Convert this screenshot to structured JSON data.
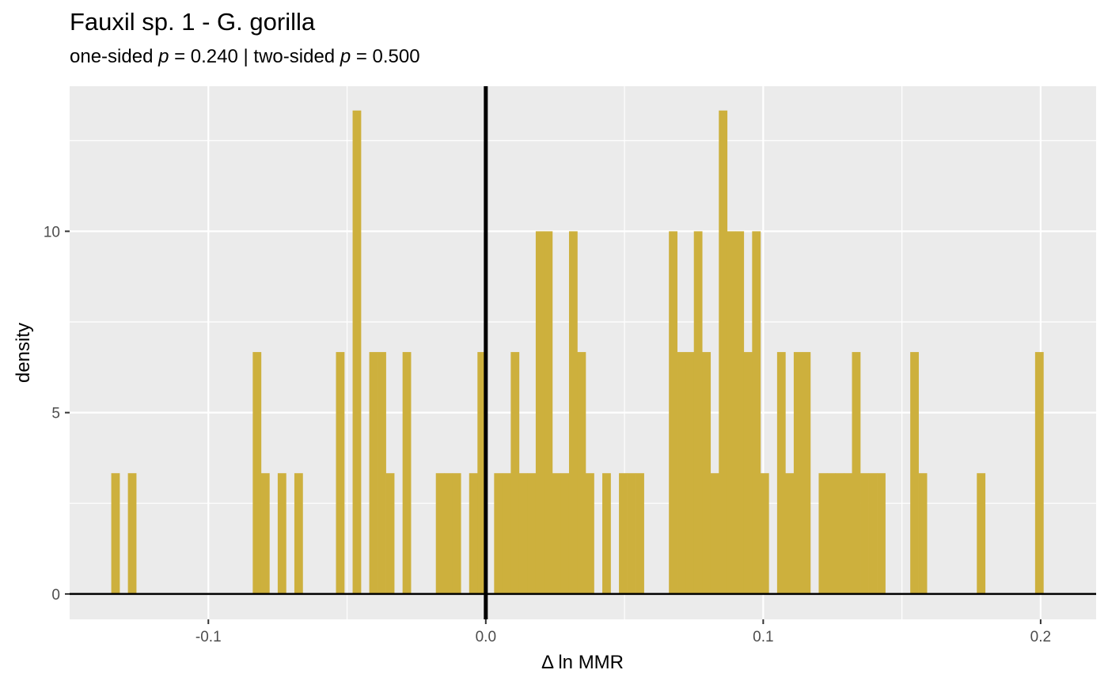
{
  "chart_data": {
    "type": "bar",
    "title": "Fauxil sp. 1 - G. gorilla",
    "subtitle": {
      "one_sided_label": "one-sided ",
      "p_symbol": "p",
      "one_sided_value": " = 0.240 | two-sided ",
      "two_sided_value": " = 0.500"
    },
    "xlabel": "Δ ln MMR",
    "ylabel": "density",
    "xlim": [
      -0.15,
      0.22
    ],
    "ylim": [
      -0.7,
      14.0
    ],
    "x_ticks": [
      -0.1,
      0.0,
      0.1,
      0.2
    ],
    "x_tick_labels": [
      "-0.1",
      "0.0",
      "0.1",
      "0.2"
    ],
    "y_ticks": [
      0,
      5,
      10
    ],
    "y_tick_labels": [
      "0",
      "5",
      "10"
    ],
    "bin_width": 0.003,
    "bars": [
      {
        "x": -0.1335,
        "y": 3.33
      },
      {
        "x": -0.1275,
        "y": 3.33
      },
      {
        "x": -0.0825,
        "y": 6.67
      },
      {
        "x": -0.0795,
        "y": 3.33
      },
      {
        "x": -0.0735,
        "y": 3.33
      },
      {
        "x": -0.0675,
        "y": 3.33
      },
      {
        "x": -0.0525,
        "y": 6.67
      },
      {
        "x": -0.0465,
        "y": 13.33
      },
      {
        "x": -0.0405,
        "y": 6.67
      },
      {
        "x": -0.0375,
        "y": 6.67
      },
      {
        "x": -0.0345,
        "y": 3.33
      },
      {
        "x": -0.0285,
        "y": 6.67
      },
      {
        "x": -0.0165,
        "y": 3.33
      },
      {
        "x": -0.0135,
        "y": 3.33
      },
      {
        "x": -0.0105,
        "y": 3.33
      },
      {
        "x": -0.0045,
        "y": 3.33
      },
      {
        "x": -0.0015,
        "y": 6.67
      },
      {
        "x": 0.0045,
        "y": 3.33
      },
      {
        "x": 0.0075,
        "y": 3.33
      },
      {
        "x": 0.0105,
        "y": 6.67
      },
      {
        "x": 0.0135,
        "y": 3.33
      },
      {
        "x": 0.0165,
        "y": 3.33
      },
      {
        "x": 0.0195,
        "y": 10.0
      },
      {
        "x": 0.0225,
        "y": 10.0
      },
      {
        "x": 0.0255,
        "y": 3.33
      },
      {
        "x": 0.0285,
        "y": 3.33
      },
      {
        "x": 0.0315,
        "y": 10.0
      },
      {
        "x": 0.0345,
        "y": 6.67
      },
      {
        "x": 0.0375,
        "y": 3.33
      },
      {
        "x": 0.0435,
        "y": 3.33
      },
      {
        "x": 0.0495,
        "y": 3.33
      },
      {
        "x": 0.0525,
        "y": 3.33
      },
      {
        "x": 0.0555,
        "y": 3.33
      },
      {
        "x": 0.0675,
        "y": 10.0
      },
      {
        "x": 0.0705,
        "y": 6.67
      },
      {
        "x": 0.0735,
        "y": 6.67
      },
      {
        "x": 0.0765,
        "y": 10.0
      },
      {
        "x": 0.0795,
        "y": 6.67
      },
      {
        "x": 0.0825,
        "y": 3.33
      },
      {
        "x": 0.0855,
        "y": 13.33
      },
      {
        "x": 0.0885,
        "y": 10.0
      },
      {
        "x": 0.0915,
        "y": 10.0
      },
      {
        "x": 0.0945,
        "y": 6.67
      },
      {
        "x": 0.0975,
        "y": 10.0
      },
      {
        "x": 0.1005,
        "y": 3.33
      },
      {
        "x": 0.1065,
        "y": 6.67
      },
      {
        "x": 0.1095,
        "y": 3.33
      },
      {
        "x": 0.1125,
        "y": 6.67
      },
      {
        "x": 0.1155,
        "y": 6.67
      },
      {
        "x": 0.1215,
        "y": 3.33
      },
      {
        "x": 0.1245,
        "y": 3.33
      },
      {
        "x": 0.1275,
        "y": 3.33
      },
      {
        "x": 0.1305,
        "y": 3.33
      },
      {
        "x": 0.1335,
        "y": 6.67
      },
      {
        "x": 0.1365,
        "y": 3.33
      },
      {
        "x": 0.1395,
        "y": 3.33
      },
      {
        "x": 0.1425,
        "y": 3.33
      },
      {
        "x": 0.1545,
        "y": 6.67
      },
      {
        "x": 0.1575,
        "y": 3.33
      },
      {
        "x": 0.1785,
        "y": 3.33
      },
      {
        "x": 0.1995,
        "y": 6.67
      }
    ],
    "reference_line_x": 0.0,
    "grid": true,
    "colors": {
      "bar_fill": "#cdb03d",
      "panel_background": "#ebebeb",
      "grid": "#ffffff",
      "reference_line": "#000000"
    }
  }
}
